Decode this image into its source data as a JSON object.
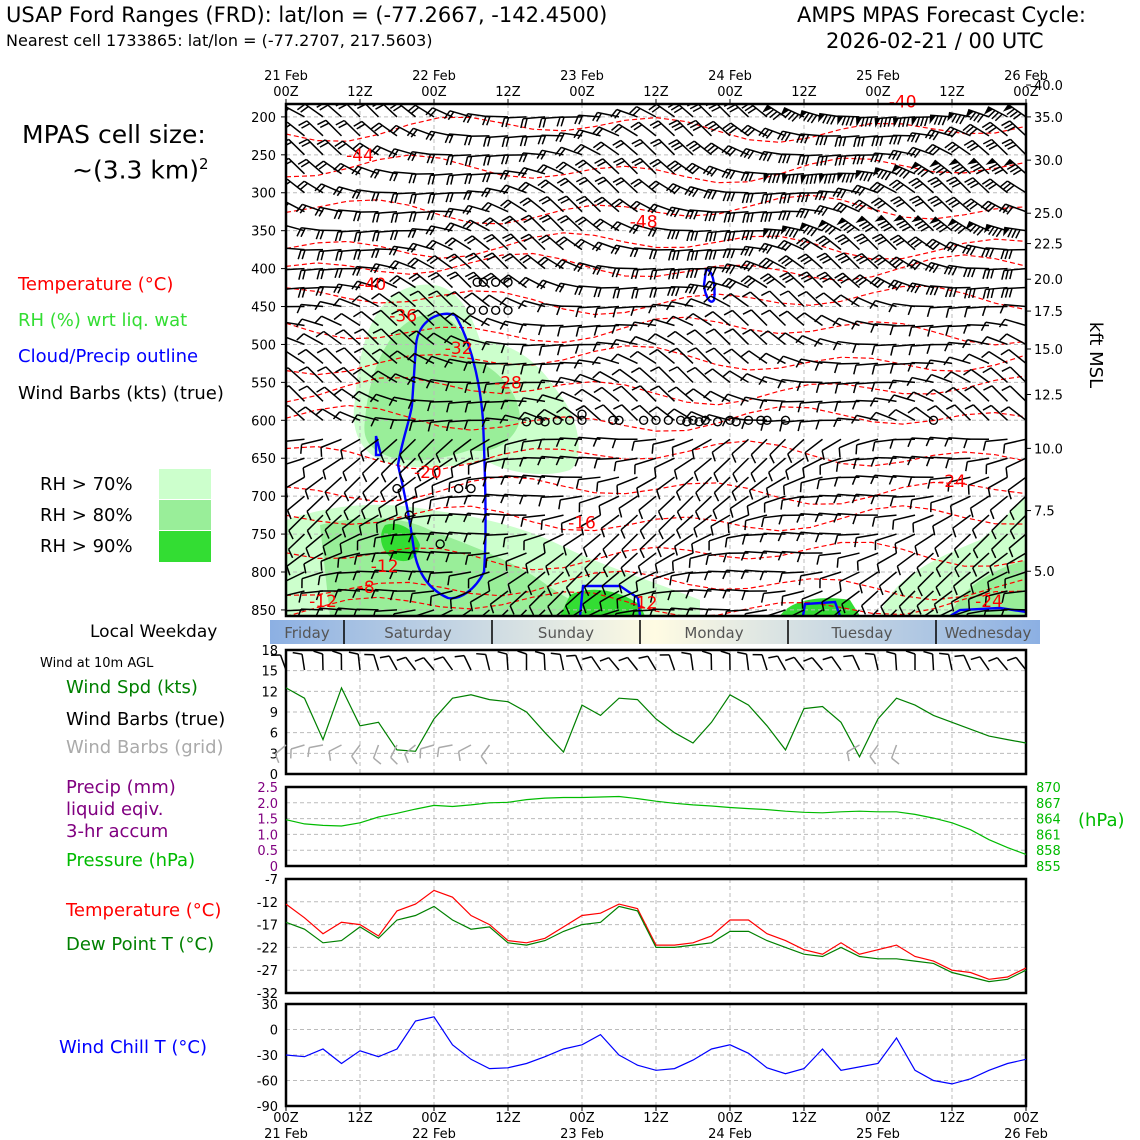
{
  "header": {
    "title": "USAP Ford Ranges (FRD): lat/lon = (-77.2667, -142.4500)",
    "subtitle": "Nearest cell 1733865: lat/lon = (-77.2707, 217.5603)",
    "cycle_line1": "AMPS MPAS Forecast Cycle:",
    "cycle_line2": "2026-02-21 / 00 UTC"
  },
  "legend": {
    "cell_size_line1": "MPAS cell size:",
    "cell_size_line2": "~(3.3 km)",
    "cell_size_sup": "2",
    "temperature": "Temperature (°C)",
    "rh": "RH (%) wrt liq. wat",
    "cloud": "Cloud/Precip outline",
    "barbs": "Wind Barbs (kts) (true)",
    "rh70": "RH > 70%",
    "rh80": "RH > 80%",
    "rh90": "RH > 90%"
  },
  "colors": {
    "temperature": "#ff0000",
    "rh_text": "#33dd33",
    "cloud": "#0000ff",
    "rh70": "#ccffcc",
    "rh80": "#99ee99",
    "rh90": "#33dd33",
    "wind_speed": "#008000",
    "pressure": "#00bb00",
    "precip": "#800080",
    "dewpoint": "#008000",
    "wind_chill": "#0000ff",
    "grid_barb": "#aaaaaa"
  },
  "time_axis": {
    "top_row1": [
      "21 Feb",
      "",
      "22 Feb",
      "",
      "23 Feb",
      "",
      "24 Feb",
      "",
      "25 Feb",
      "",
      "26 Feb"
    ],
    "top_row2": [
      "00Z",
      "12Z",
      "00Z",
      "12Z",
      "00Z",
      "12Z",
      "00Z",
      "12Z",
      "00Z",
      "12Z",
      "00Z"
    ],
    "bottom_row1": [
      "00Z",
      "12Z",
      "00Z",
      "12Z",
      "00Z",
      "12Z",
      "00Z",
      "12Z",
      "00Z",
      "12Z",
      "00Z"
    ],
    "bottom_row2": [
      "21 Feb",
      "",
      "22 Feb",
      "",
      "23 Feb",
      "",
      "24 Feb",
      "",
      "25 Feb",
      "",
      "26 Feb"
    ]
  },
  "weekday": {
    "label": "Local Weekday",
    "days": [
      "Friday",
      "Saturday",
      "Sunday",
      "Monday",
      "Tuesday",
      "Wednesday"
    ]
  },
  "chart_data": [
    {
      "type": "heatmap",
      "name": "time-height cross section",
      "ylabel_right": "kft MSL",
      "y_pressure_ticks": [
        200,
        250,
        300,
        350,
        400,
        450,
        500,
        550,
        600,
        650,
        700,
        750,
        800,
        850
      ],
      "y_height_ticks": [
        "40.0",
        "35.0",
        "30.0",
        "25.0",
        "22.5",
        "20.0",
        "17.5",
        "15.0",
        "12.5",
        "10.0",
        "7.5",
        "5.0"
      ],
      "y_height_pressure": [
        158,
        200,
        257,
        327,
        367,
        414,
        456,
        506,
        566,
        637,
        719,
        799
      ],
      "temperature_labels": [
        {
          "text": "-40",
          "hour": 100,
          "p": 180
        },
        {
          "text": "-44",
          "hour": 12,
          "p": 250
        },
        {
          "text": "-48",
          "hour": 58,
          "p": 338
        },
        {
          "text": "-40",
          "hour": 14,
          "p": 420
        },
        {
          "text": "-36",
          "hour": 19,
          "p": 462
        },
        {
          "text": "-32",
          "hour": 28,
          "p": 505
        },
        {
          "text": "-28",
          "hour": 36,
          "p": 550
        },
        {
          "text": "-20",
          "hour": 23,
          "p": 668
        },
        {
          "text": "-24",
          "hour": 108,
          "p": 680
        },
        {
          "text": "-16",
          "hour": 48,
          "p": 735
        },
        {
          "text": "-12",
          "hour": 16,
          "p": 792
        },
        {
          "text": "-8",
          "hour": 13,
          "p": 820
        },
        {
          "text": "-12",
          "hour": 6,
          "p": 838
        },
        {
          "text": "-12",
          "hour": 58,
          "p": 840
        },
        {
          "text": "-24",
          "hour": 114,
          "p": 838
        }
      ]
    },
    {
      "type": "line",
      "name": "surface wind",
      "ylabel": "Wind Spd (kts)",
      "label_barbs": "Wind Barbs (true)",
      "label_grid_barbs": "Wind Barbs (grid)",
      "title": "Wind at 10m AGL",
      "ylim": [
        0,
        18
      ],
      "y_ticks": [
        0,
        3,
        6,
        9,
        12,
        15,
        18
      ],
      "series": [
        {
          "name": "Wind Spd (kts)",
          "x": [
            0,
            3,
            6,
            9,
            12,
            15,
            18,
            21,
            24,
            27,
            30,
            33,
            36,
            39,
            42,
            45,
            48,
            51,
            54,
            57,
            60,
            63,
            66,
            69,
            72,
            75,
            78,
            81,
            84,
            87,
            90,
            93,
            96,
            99,
            102,
            105,
            108,
            111,
            114,
            117,
            120
          ],
          "values": [
            12.5,
            11,
            5,
            12.5,
            7,
            7.5,
            3.5,
            3.3,
            8,
            11,
            11.5,
            10.8,
            10.5,
            9,
            6,
            3.2,
            10,
            8.5,
            11,
            10.8,
            8,
            6,
            4.5,
            7.5,
            11.5,
            10,
            7,
            3.5,
            9.5,
            9.8,
            7.5,
            2.5,
            8,
            11,
            10,
            8.5,
            7.5,
            6.5,
            5.5,
            5,
            4.5
          ]
        }
      ]
    },
    {
      "type": "line",
      "name": "precip and pressure",
      "ylabel_left": "Precip (mm) liquid eqiv. 3-hr accum",
      "ylabel_right": "(hPa)",
      "ylim_left": [
        0,
        2.5
      ],
      "y_ticks_left": [
        "0",
        "0.5",
        "1.0",
        "1.5",
        "2.0",
        "2.5"
      ],
      "ylim_right": [
        855,
        870
      ],
      "y_ticks_right": [
        "855",
        "858",
        "861",
        "864",
        "867",
        "870"
      ],
      "series": [
        {
          "name": "Pressure (hPa)",
          "x": [
            0,
            3,
            6,
            9,
            12,
            15,
            18,
            21,
            24,
            27,
            30,
            33,
            36,
            39,
            42,
            45,
            48,
            51,
            54,
            57,
            60,
            63,
            66,
            69,
            72,
            75,
            78,
            81,
            84,
            87,
            90,
            93,
            96,
            99,
            102,
            105,
            108,
            111,
            114,
            117,
            120
          ],
          "values": [
            863.8,
            863.0,
            862.7,
            862.6,
            863.2,
            864.3,
            865.0,
            865.8,
            866.5,
            866.3,
            866.6,
            867.0,
            867.1,
            867.6,
            867.9,
            868.0,
            868.0,
            868.1,
            868.2,
            867.8,
            867.3,
            866.9,
            866.6,
            866.4,
            866.1,
            865.9,
            865.7,
            865.4,
            865.2,
            865.1,
            865.3,
            865.4,
            865.3,
            865.3,
            864.8,
            864.1,
            863.2,
            861.9,
            860.0,
            858.5,
            857.2
          ]
        }
      ]
    },
    {
      "type": "line",
      "name": "temperature and dew point",
      "ylim": [
        -32,
        -7
      ],
      "y_ticks": [
        -7,
        -12,
        -17,
        -22,
        -27,
        -32
      ],
      "series": [
        {
          "name": "Temperature (°C)",
          "x": [
            0,
            3,
            6,
            9,
            12,
            15,
            18,
            21,
            24,
            27,
            30,
            33,
            36,
            39,
            42,
            45,
            48,
            51,
            54,
            57,
            60,
            63,
            66,
            69,
            72,
            75,
            78,
            81,
            84,
            87,
            90,
            93,
            96,
            99,
            102,
            105,
            108,
            111,
            114,
            117,
            120
          ],
          "values": [
            -12.5,
            -15.5,
            -19,
            -16.5,
            -17,
            -19.5,
            -14,
            -12.5,
            -9.5,
            -11,
            -15,
            -17,
            -20.5,
            -21,
            -20,
            -17.5,
            -15,
            -14.5,
            -12.5,
            -13.5,
            -21.5,
            -21.5,
            -21,
            -19.5,
            -16,
            -16,
            -19,
            -20.5,
            -22.5,
            -23.5,
            -21,
            -23.5,
            -22.5,
            -21.5,
            -24,
            -25,
            -27,
            -27.5,
            -29,
            -28.5,
            -26.5
          ]
        },
        {
          "name": "Dew Point T (°C)",
          "x": [
            0,
            3,
            6,
            9,
            12,
            15,
            18,
            21,
            24,
            27,
            30,
            33,
            36,
            39,
            42,
            45,
            48,
            51,
            54,
            57,
            60,
            63,
            66,
            69,
            72,
            75,
            78,
            81,
            84,
            87,
            90,
            93,
            96,
            99,
            102,
            105,
            108,
            111,
            114,
            117,
            120
          ],
          "values": [
            -16.5,
            -18,
            -21,
            -20.5,
            -17.5,
            -20,
            -16,
            -15,
            -13,
            -16,
            -18,
            -17.5,
            -21,
            -21.5,
            -20.5,
            -18.5,
            -17,
            -16.5,
            -13,
            -14,
            -22,
            -22,
            -21.5,
            -21,
            -18.5,
            -18.5,
            -20.5,
            -22,
            -23.5,
            -24,
            -22,
            -24,
            -24.5,
            -24.5,
            -25,
            -25.5,
            -27.5,
            -28.5,
            -29.5,
            -29,
            -27
          ]
        }
      ]
    },
    {
      "type": "line",
      "name": "wind chill",
      "ylabel": "Wind Chill T (°C)",
      "ylim": [
        -90,
        30
      ],
      "y_ticks": [
        30,
        0,
        -30,
        -60,
        -90
      ],
      "series": [
        {
          "name": "Wind Chill T (°C)",
          "x": [
            0,
            3,
            6,
            9,
            12,
            15,
            18,
            21,
            24,
            27,
            30,
            33,
            36,
            39,
            42,
            45,
            48,
            51,
            54,
            57,
            60,
            63,
            66,
            69,
            72,
            75,
            78,
            81,
            84,
            87,
            90,
            93,
            96,
            99,
            102,
            105,
            108,
            111,
            114,
            117,
            120
          ],
          "values": [
            -30,
            -32,
            -23,
            -40,
            -25,
            -32,
            -23,
            10,
            15,
            -18,
            -35,
            -46,
            -45,
            -40,
            -32,
            -23,
            -18,
            -6,
            -30,
            -42,
            -48,
            -46,
            -36,
            -23,
            -18,
            -28,
            -45,
            -52,
            -46,
            -23,
            -48,
            -44,
            -40,
            -10,
            -48,
            -60,
            -64,
            -58,
            -48,
            -40,
            -35
          ]
        }
      ]
    }
  ]
}
